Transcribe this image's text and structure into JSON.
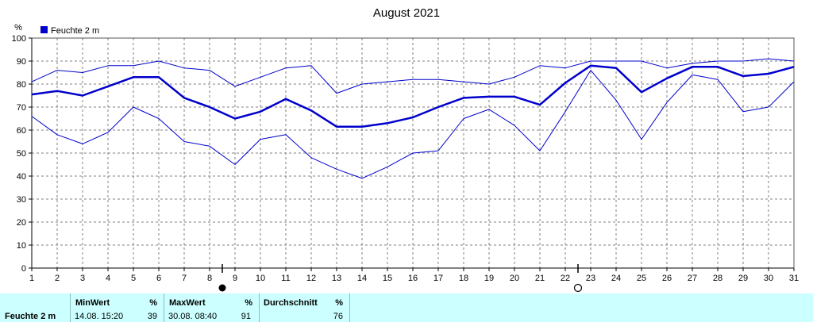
{
  "chart_data": {
    "type": "line",
    "title": "August 2021",
    "ylabel": "%",
    "ylim": [
      0,
      100
    ],
    "yticks": [
      0,
      10,
      20,
      30,
      40,
      50,
      60,
      70,
      80,
      90,
      100
    ],
    "x": [
      1,
      2,
      3,
      4,
      5,
      6,
      7,
      8,
      9,
      10,
      11,
      12,
      13,
      14,
      15,
      16,
      17,
      18,
      19,
      20,
      21,
      22,
      23,
      24,
      25,
      26,
      27,
      28,
      29,
      30,
      31
    ],
    "xlim": [
      1,
      31
    ],
    "grid": true,
    "legend": {
      "label": "Feuchte  2 m",
      "position": "top-left",
      "color": "#0000cc"
    },
    "series": [
      {
        "role": "max",
        "width": 1,
        "values": [
          81,
          86,
          85,
          88,
          88,
          90,
          87,
          86,
          79,
          83,
          87,
          88,
          76,
          80,
          81,
          82,
          82,
          81,
          80,
          83,
          88,
          87,
          90,
          90,
          90,
          87,
          89,
          90,
          90,
          91,
          90
        ]
      },
      {
        "role": "mean",
        "width": 2.5,
        "values": [
          75.5,
          77,
          75,
          79,
          83,
          83,
          74,
          70,
          65,
          68,
          73.5,
          68.5,
          61.5,
          61.5,
          63,
          65.5,
          70,
          74,
          74.5,
          74.5,
          71,
          80.5,
          88,
          87,
          76.5,
          82.5,
          87.5,
          87.5,
          83.5,
          84.5,
          87.5
        ]
      },
      {
        "role": "min",
        "width": 1,
        "values": [
          66,
          58,
          54,
          59,
          70,
          65,
          55,
          53,
          45,
          56,
          58,
          48,
          43,
          39,
          44,
          50,
          51,
          65,
          69,
          62,
          51,
          68,
          86,
          73,
          56,
          72,
          84,
          82,
          68,
          70,
          81
        ]
      }
    ],
    "markers": [
      {
        "x": 8.5,
        "symbol": "full-moon"
      },
      {
        "x": 22.5,
        "symbol": "new-moon"
      }
    ]
  },
  "colors": {
    "line": "#0000cc",
    "grid": "#808080",
    "stats_bg": "#ccffff"
  },
  "stats": {
    "row_label": "Feuchte   2 m",
    "min": {
      "header": "MinWert",
      "unit": "%",
      "date": "14.08.  15:20",
      "value": "39"
    },
    "max": {
      "header": "MaxWert",
      "unit": "%",
      "date": "30.08.  08:40",
      "value": "91"
    },
    "avg": {
      "header": "Durchschnitt",
      "unit": "%",
      "value": "76"
    }
  }
}
